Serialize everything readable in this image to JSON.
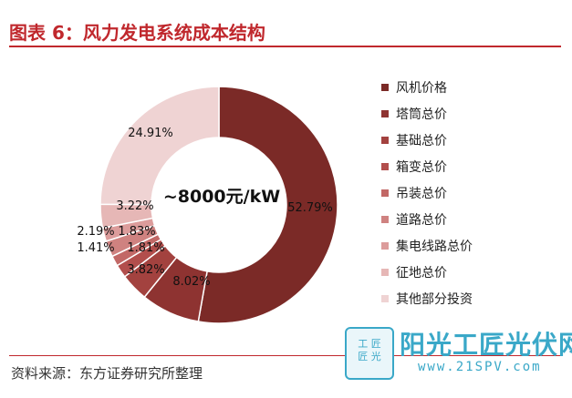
{
  "header": {
    "title": "图表 6：风力发电系统成本结构"
  },
  "footer": {
    "source": "资料来源：东方证券研究所整理"
  },
  "watermark": {
    "badge_line1": "工 匠",
    "badge_line2": "匠 光",
    "name": "阳光工匠光伏网",
    "url": "www.21SPV.com"
  },
  "chart_data": {
    "type": "pie",
    "variant": "donut",
    "center_label": "~8000元/kW",
    "legend_position": "right",
    "slices": [
      {
        "label": "风机价格",
        "value": 52.79,
        "value_label": "52.79%",
        "color": "#7b2a27"
      },
      {
        "label": "塔筒总价",
        "value": 8.02,
        "value_label": "8.02%",
        "color": "#8e3331"
      },
      {
        "label": "基础总价",
        "value": 3.82,
        "value_label": "3.82%",
        "color": "#a3423f"
      },
      {
        "label": "箱变总价",
        "value": 1.81,
        "value_label": "1.81%",
        "color": "#b24e4c"
      },
      {
        "label": "吊装总价",
        "value": 1.41,
        "value_label": "1.41%",
        "color": "#c26866"
      },
      {
        "label": "道路总价",
        "value": 2.19,
        "value_label": "2.19%",
        "color": "#cf8280"
      },
      {
        "label": "集电线路总价",
        "value": 1.83,
        "value_label": "1.83%",
        "color": "#dc9c9b"
      },
      {
        "label": "征地总价",
        "value": 3.22,
        "value_label": "3.22%",
        "color": "#e6b7b6"
      },
      {
        "label": "其他部分投资",
        "value": 24.91,
        "value_label": "24.91%",
        "color": "#efd3d3"
      }
    ]
  }
}
